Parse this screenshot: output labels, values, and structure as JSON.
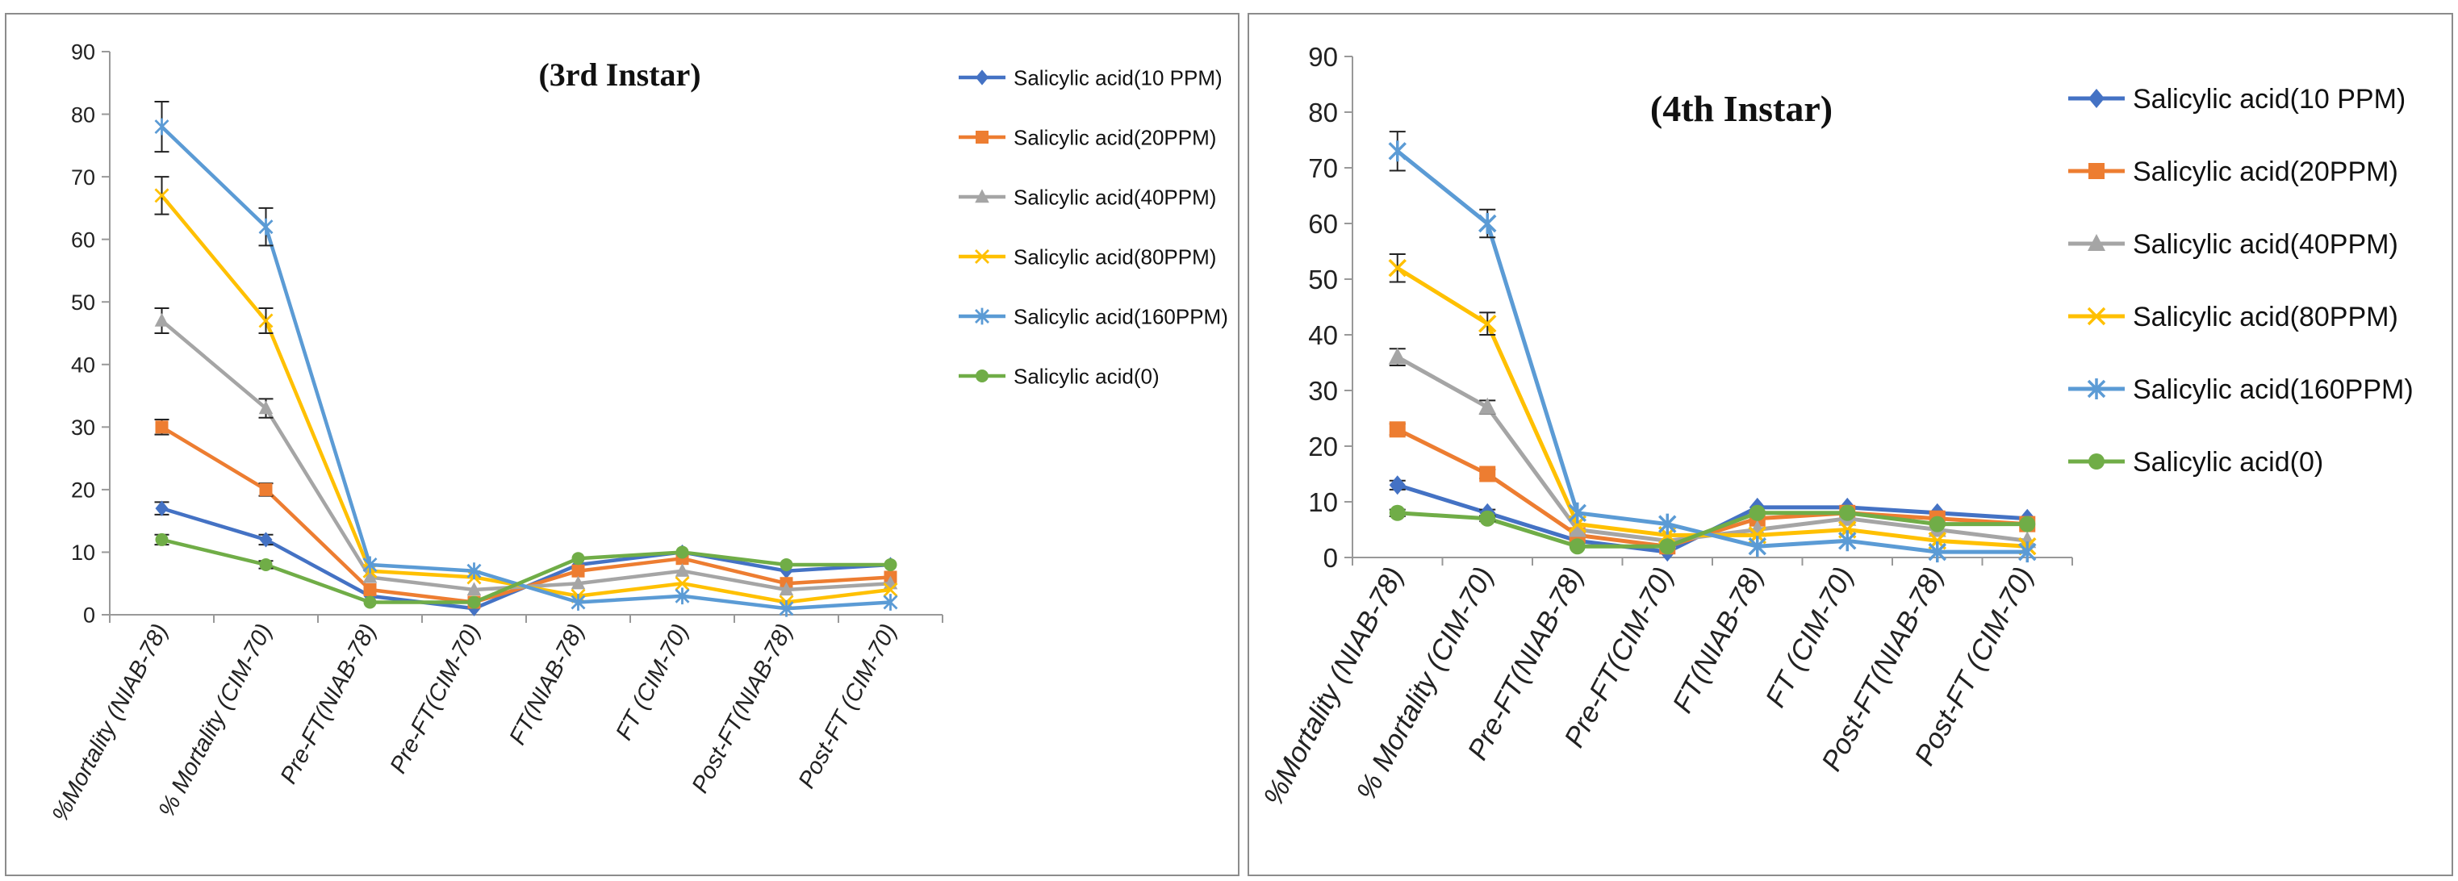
{
  "chart_data": [
    {
      "type": "line",
      "title": "(3rd Instar)",
      "ylim": [
        0,
        90
      ],
      "yticks": [
        "0",
        "10",
        "20",
        "30",
        "40",
        "50",
        "60",
        "70",
        "80",
        "90"
      ],
      "categories": [
        "%Mortality (NIAB-78)",
        "% Mortality (CIM-70)",
        "Pre-FT(NIAB-78)",
        "Pre-FT(CIM-70)",
        "FT(NIAB-78)",
        "FT (CIM-70)",
        "Post-FT(NIAB-78)",
        "Post-FT (CIM-70)"
      ],
      "grid": false,
      "legend_position": "right",
      "series": [
        {
          "name": "Salicylic acid(10 PPM)",
          "color": "#4472c4",
          "marker": "diamond",
          "values": [
            17,
            12,
            3,
            1,
            8,
            10,
            7,
            8
          ],
          "errors": [
            1,
            0.8,
            0,
            0,
            0,
            0,
            0,
            0
          ]
        },
        {
          "name": "Salicylic acid(20PPM)",
          "color": "#ed7d31",
          "marker": "square",
          "values": [
            30,
            20,
            4,
            2,
            7,
            9,
            5,
            6
          ],
          "errors": [
            1.2,
            1,
            0,
            0,
            0,
            0,
            0,
            0
          ]
        },
        {
          "name": "Salicylic acid(40PPM)",
          "color": "#a5a5a5",
          "marker": "triangle",
          "values": [
            47,
            33,
            6,
            4,
            5,
            7,
            4,
            5
          ],
          "errors": [
            2,
            1.5,
            0,
            0,
            0,
            0,
            0,
            0
          ]
        },
        {
          "name": "Salicylic acid(80PPM)",
          "color": "#ffc000",
          "marker": "x",
          "values": [
            67,
            47,
            7,
            6,
            3,
            5,
            2,
            4
          ],
          "errors": [
            3,
            2,
            0,
            0,
            0,
            0,
            0,
            0
          ]
        },
        {
          "name": "Salicylic acid(160PPM)",
          "color": "#5b9bd5",
          "marker": "star",
          "values": [
            78,
            62,
            8,
            7,
            2,
            3,
            1,
            2
          ],
          "errors": [
            4,
            3,
            0,
            0,
            0,
            0,
            0,
            0
          ]
        },
        {
          "name": "Salicylic acid(0)",
          "color": "#70ad47",
          "marker": "circle",
          "values": [
            12,
            8,
            2,
            2,
            9,
            10,
            8,
            8
          ],
          "errors": [
            0.8,
            0.6,
            0,
            0,
            0,
            0,
            0,
            0
          ]
        }
      ]
    },
    {
      "type": "line",
      "title": "(4th Instar)",
      "ylim": [
        0,
        90
      ],
      "yticks": [
        "0",
        "10",
        "20",
        "30",
        "40",
        "50",
        "60",
        "70",
        "80",
        "90"
      ],
      "categories": [
        "%Mortality (NIAB-78)",
        "% Mortality (CIM-70)",
        "Pre-FT(NIAB-78)",
        "Pre-FT(CIM-70)",
        "FT(NIAB-78)",
        "FT (CIM-70)",
        "Post-FT(NIAB-78)",
        "Post-FT (CIM-70)"
      ],
      "grid": false,
      "legend_position": "right",
      "series": [
        {
          "name": "Salicylic acid(10 PPM)",
          "color": "#4472c4",
          "marker": "diamond",
          "values": [
            13,
            8,
            3,
            1,
            9,
            9,
            8,
            7
          ],
          "errors": [
            0.8,
            0.6,
            0,
            0,
            0,
            0,
            0,
            0
          ]
        },
        {
          "name": "Salicylic acid(20PPM)",
          "color": "#ed7d31",
          "marker": "square",
          "values": [
            23,
            15,
            4,
            2,
            7,
            8,
            7,
            6
          ],
          "errors": [
            1,
            0.8,
            0,
            0,
            0,
            0,
            0,
            0
          ]
        },
        {
          "name": "Salicylic acid(40PPM)",
          "color": "#a5a5a5",
          "marker": "triangle",
          "values": [
            36,
            27,
            5,
            3,
            5,
            7,
            5,
            3
          ],
          "errors": [
            1.5,
            1.2,
            0,
            0,
            0,
            0,
            0,
            0
          ]
        },
        {
          "name": "Salicylic acid(80PPM)",
          "color": "#ffc000",
          "marker": "x",
          "values": [
            52,
            42,
            6,
            4,
            4,
            5,
            3,
            2
          ],
          "errors": [
            2.5,
            2,
            0,
            0,
            0,
            0,
            0,
            0
          ]
        },
        {
          "name": "Salicylic acid(160PPM)",
          "color": "#5b9bd5",
          "marker": "star",
          "values": [
            73,
            60,
            8,
            6,
            2,
            3,
            1,
            1
          ],
          "errors": [
            3.5,
            2.5,
            0,
            0,
            0,
            0,
            0,
            0
          ]
        },
        {
          "name": "Salicylic acid(0)",
          "color": "#70ad47",
          "marker": "circle",
          "values": [
            8,
            7,
            2,
            2,
            8,
            8,
            6,
            6
          ],
          "errors": [
            0.6,
            0.5,
            0,
            0,
            0,
            0,
            0,
            0
          ]
        }
      ]
    }
  ]
}
